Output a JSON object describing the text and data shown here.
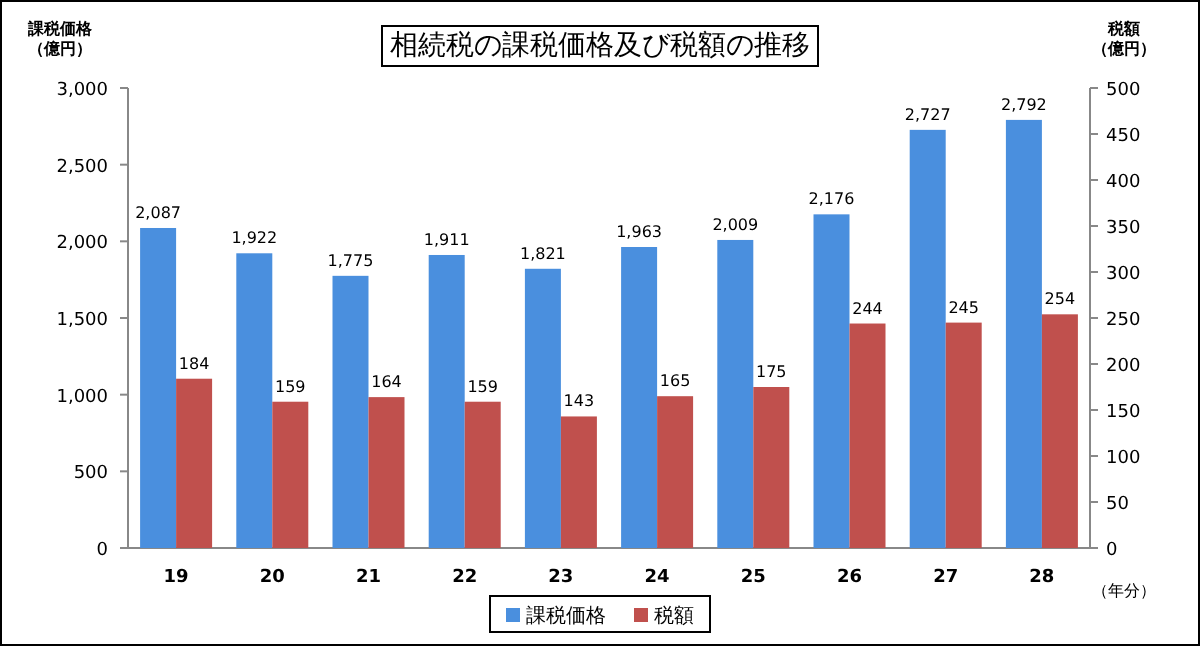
{
  "chart_data": {
    "type": "bar",
    "title": "相続税の課税価格及び税額の推移",
    "ylabel": "課税価格（億円）",
    "y2label": "税額（億円）",
    "xlabel": "（年分）",
    "categories": [
      "19",
      "20",
      "21",
      "22",
      "23",
      "24",
      "25",
      "26",
      "27",
      "28"
    ],
    "series": [
      {
        "name": "課税価格",
        "color": "#4a8fde",
        "values": [
          2087,
          1922,
          1775,
          1911,
          1821,
          1963,
          2009,
          2176,
          2727,
          2792
        ],
        "value_labels": [
          "2,087",
          "1,922",
          "1,775",
          "1,911",
          "1,821",
          "1,963",
          "2,009",
          "2,176",
          "2,727",
          "2,792"
        ]
      },
      {
        "name": "税額",
        "color": "#c0504d",
        "axis": "y2",
        "values": [
          184,
          159,
          164,
          159,
          143,
          165,
          175,
          244,
          245,
          254
        ]
      }
    ],
    "ylim": [
      0,
      3000
    ],
    "yticks": [
      0,
      500,
      {
        "value": 1000,
        "label": "1,000"
      },
      {
        "value": 1500,
        "label": "1,500"
      },
      {
        "value": 2000,
        "label": "2,000"
      },
      {
        "value": 2500,
        "label": "2,500"
      },
      {
        "value": 3000,
        "label": "3,000"
      }
    ],
    "y2lim": [
      0,
      500
    ],
    "y2ticks": [
      0,
      50,
      100,
      150,
      200,
      250,
      300,
      350,
      400,
      450,
      500
    ],
    "data_labels": true,
    "legend": "bottom",
    "grid": false
  }
}
